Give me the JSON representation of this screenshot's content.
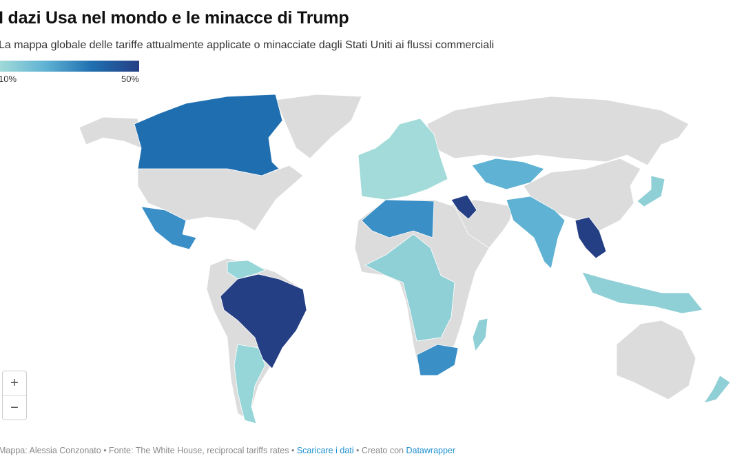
{
  "title": "I dazi Usa nel mondo e le minacce di Trump",
  "subtitle": "La mappa globale delle tariffe attualmente applicate o minacciate dagli Stati Uniti ai flussi commerciali",
  "legend": {
    "min_label": "10%",
    "max_label": "50%",
    "min_value": 10,
    "max_value": 50,
    "colors": [
      "#a2dbd9",
      "#5fb2d3",
      "#1f6fb0",
      "#253f85"
    ],
    "no_data_color": "#dcdcdc"
  },
  "zoom": {
    "in_label": "+",
    "out_label": "−"
  },
  "footer": {
    "author": "Mappa: Alessia Conzonato",
    "sep1": " • ",
    "source": "Fonte: The White House, reciprocal tariffs rates",
    "sep2": " • ",
    "download_link": "Scaricare i dati",
    "sep3": " • ",
    "created_with": "Creato con ",
    "datawrapper_link": "Datawrapper"
  }
}
